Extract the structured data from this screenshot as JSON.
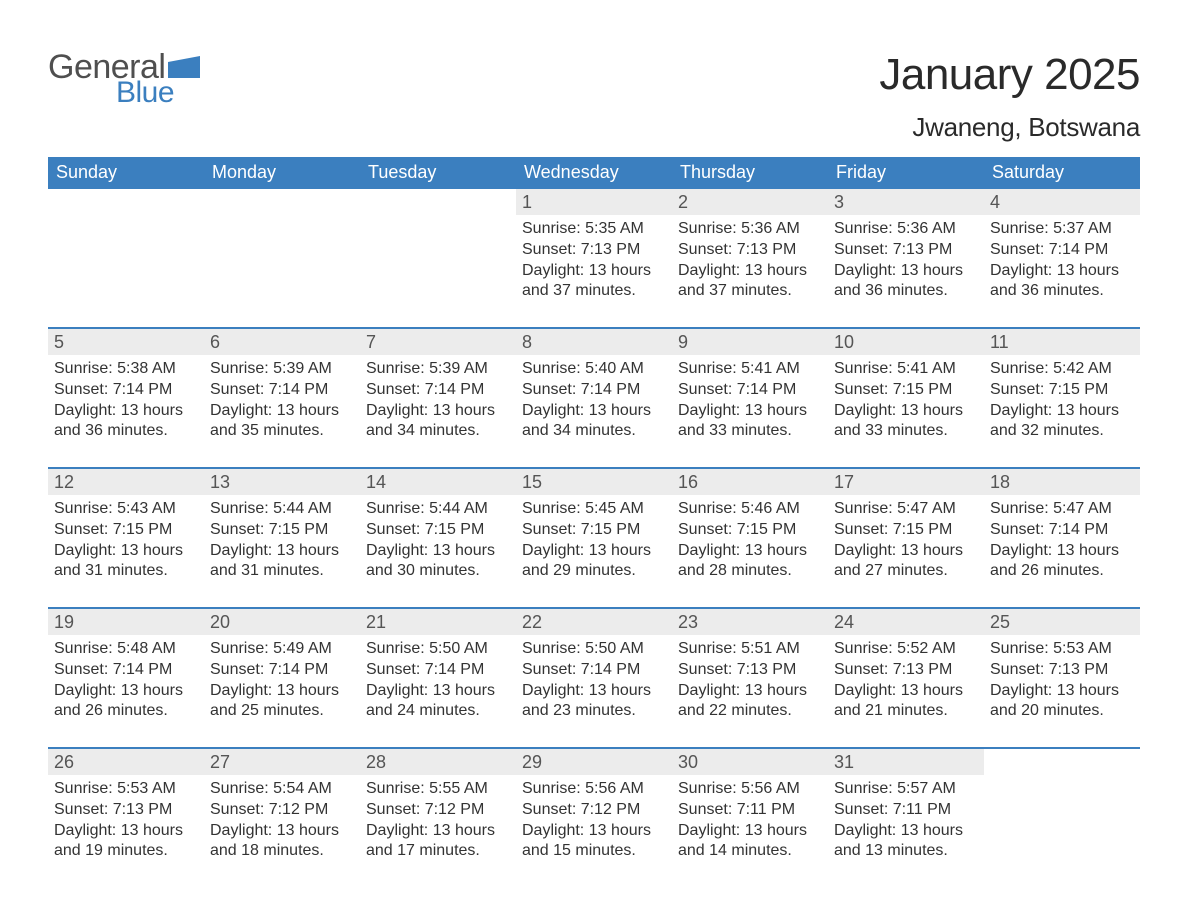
{
  "logo": {
    "general": "General",
    "blue": "Blue",
    "flag_color": "#3b7fbf"
  },
  "title": "January 2025",
  "location": "Jwaneng, Botswana",
  "colors": {
    "header_bg": "#3b7fbf",
    "header_text": "#ffffff",
    "daynum_bg": "#ececec",
    "body_text": "#333333",
    "rule": "#3b7fbf"
  },
  "weekdays": [
    "Sunday",
    "Monday",
    "Tuesday",
    "Wednesday",
    "Thursday",
    "Friday",
    "Saturday"
  ],
  "weeks": [
    [
      {
        "day": "",
        "sunrise": "",
        "sunset": "",
        "daylight1": "",
        "daylight2": ""
      },
      {
        "day": "",
        "sunrise": "",
        "sunset": "",
        "daylight1": "",
        "daylight2": ""
      },
      {
        "day": "",
        "sunrise": "",
        "sunset": "",
        "daylight1": "",
        "daylight2": ""
      },
      {
        "day": "1",
        "sunrise": "Sunrise: 5:35 AM",
        "sunset": "Sunset: 7:13 PM",
        "daylight1": "Daylight: 13 hours",
        "daylight2": "and 37 minutes."
      },
      {
        "day": "2",
        "sunrise": "Sunrise: 5:36 AM",
        "sunset": "Sunset: 7:13 PM",
        "daylight1": "Daylight: 13 hours",
        "daylight2": "and 37 minutes."
      },
      {
        "day": "3",
        "sunrise": "Sunrise: 5:36 AM",
        "sunset": "Sunset: 7:13 PM",
        "daylight1": "Daylight: 13 hours",
        "daylight2": "and 36 minutes."
      },
      {
        "day": "4",
        "sunrise": "Sunrise: 5:37 AM",
        "sunset": "Sunset: 7:14 PM",
        "daylight1": "Daylight: 13 hours",
        "daylight2": "and 36 minutes."
      }
    ],
    [
      {
        "day": "5",
        "sunrise": "Sunrise: 5:38 AM",
        "sunset": "Sunset: 7:14 PM",
        "daylight1": "Daylight: 13 hours",
        "daylight2": "and 36 minutes."
      },
      {
        "day": "6",
        "sunrise": "Sunrise: 5:39 AM",
        "sunset": "Sunset: 7:14 PM",
        "daylight1": "Daylight: 13 hours",
        "daylight2": "and 35 minutes."
      },
      {
        "day": "7",
        "sunrise": "Sunrise: 5:39 AM",
        "sunset": "Sunset: 7:14 PM",
        "daylight1": "Daylight: 13 hours",
        "daylight2": "and 34 minutes."
      },
      {
        "day": "8",
        "sunrise": "Sunrise: 5:40 AM",
        "sunset": "Sunset: 7:14 PM",
        "daylight1": "Daylight: 13 hours",
        "daylight2": "and 34 minutes."
      },
      {
        "day": "9",
        "sunrise": "Sunrise: 5:41 AM",
        "sunset": "Sunset: 7:14 PM",
        "daylight1": "Daylight: 13 hours",
        "daylight2": "and 33 minutes."
      },
      {
        "day": "10",
        "sunrise": "Sunrise: 5:41 AM",
        "sunset": "Sunset: 7:15 PM",
        "daylight1": "Daylight: 13 hours",
        "daylight2": "and 33 minutes."
      },
      {
        "day": "11",
        "sunrise": "Sunrise: 5:42 AM",
        "sunset": "Sunset: 7:15 PM",
        "daylight1": "Daylight: 13 hours",
        "daylight2": "and 32 minutes."
      }
    ],
    [
      {
        "day": "12",
        "sunrise": "Sunrise: 5:43 AM",
        "sunset": "Sunset: 7:15 PM",
        "daylight1": "Daylight: 13 hours",
        "daylight2": "and 31 minutes."
      },
      {
        "day": "13",
        "sunrise": "Sunrise: 5:44 AM",
        "sunset": "Sunset: 7:15 PM",
        "daylight1": "Daylight: 13 hours",
        "daylight2": "and 31 minutes."
      },
      {
        "day": "14",
        "sunrise": "Sunrise: 5:44 AM",
        "sunset": "Sunset: 7:15 PM",
        "daylight1": "Daylight: 13 hours",
        "daylight2": "and 30 minutes."
      },
      {
        "day": "15",
        "sunrise": "Sunrise: 5:45 AM",
        "sunset": "Sunset: 7:15 PM",
        "daylight1": "Daylight: 13 hours",
        "daylight2": "and 29 minutes."
      },
      {
        "day": "16",
        "sunrise": "Sunrise: 5:46 AM",
        "sunset": "Sunset: 7:15 PM",
        "daylight1": "Daylight: 13 hours",
        "daylight2": "and 28 minutes."
      },
      {
        "day": "17",
        "sunrise": "Sunrise: 5:47 AM",
        "sunset": "Sunset: 7:15 PM",
        "daylight1": "Daylight: 13 hours",
        "daylight2": "and 27 minutes."
      },
      {
        "day": "18",
        "sunrise": "Sunrise: 5:47 AM",
        "sunset": "Sunset: 7:14 PM",
        "daylight1": "Daylight: 13 hours",
        "daylight2": "and 26 minutes."
      }
    ],
    [
      {
        "day": "19",
        "sunrise": "Sunrise: 5:48 AM",
        "sunset": "Sunset: 7:14 PM",
        "daylight1": "Daylight: 13 hours",
        "daylight2": "and 26 minutes."
      },
      {
        "day": "20",
        "sunrise": "Sunrise: 5:49 AM",
        "sunset": "Sunset: 7:14 PM",
        "daylight1": "Daylight: 13 hours",
        "daylight2": "and 25 minutes."
      },
      {
        "day": "21",
        "sunrise": "Sunrise: 5:50 AM",
        "sunset": "Sunset: 7:14 PM",
        "daylight1": "Daylight: 13 hours",
        "daylight2": "and 24 minutes."
      },
      {
        "day": "22",
        "sunrise": "Sunrise: 5:50 AM",
        "sunset": "Sunset: 7:14 PM",
        "daylight1": "Daylight: 13 hours",
        "daylight2": "and 23 minutes."
      },
      {
        "day": "23",
        "sunrise": "Sunrise: 5:51 AM",
        "sunset": "Sunset: 7:13 PM",
        "daylight1": "Daylight: 13 hours",
        "daylight2": "and 22 minutes."
      },
      {
        "day": "24",
        "sunrise": "Sunrise: 5:52 AM",
        "sunset": "Sunset: 7:13 PM",
        "daylight1": "Daylight: 13 hours",
        "daylight2": "and 21 minutes."
      },
      {
        "day": "25",
        "sunrise": "Sunrise: 5:53 AM",
        "sunset": "Sunset: 7:13 PM",
        "daylight1": "Daylight: 13 hours",
        "daylight2": "and 20 minutes."
      }
    ],
    [
      {
        "day": "26",
        "sunrise": "Sunrise: 5:53 AM",
        "sunset": "Sunset: 7:13 PM",
        "daylight1": "Daylight: 13 hours",
        "daylight2": "and 19 minutes."
      },
      {
        "day": "27",
        "sunrise": "Sunrise: 5:54 AM",
        "sunset": "Sunset: 7:12 PM",
        "daylight1": "Daylight: 13 hours",
        "daylight2": "and 18 minutes."
      },
      {
        "day": "28",
        "sunrise": "Sunrise: 5:55 AM",
        "sunset": "Sunset: 7:12 PM",
        "daylight1": "Daylight: 13 hours",
        "daylight2": "and 17 minutes."
      },
      {
        "day": "29",
        "sunrise": "Sunrise: 5:56 AM",
        "sunset": "Sunset: 7:12 PM",
        "daylight1": "Daylight: 13 hours",
        "daylight2": "and 15 minutes."
      },
      {
        "day": "30",
        "sunrise": "Sunrise: 5:56 AM",
        "sunset": "Sunset: 7:11 PM",
        "daylight1": "Daylight: 13 hours",
        "daylight2": "and 14 minutes."
      },
      {
        "day": "31",
        "sunrise": "Sunrise: 5:57 AM",
        "sunset": "Sunset: 7:11 PM",
        "daylight1": "Daylight: 13 hours",
        "daylight2": "and 13 minutes."
      },
      {
        "day": "",
        "sunrise": "",
        "sunset": "",
        "daylight1": "",
        "daylight2": ""
      }
    ]
  ]
}
